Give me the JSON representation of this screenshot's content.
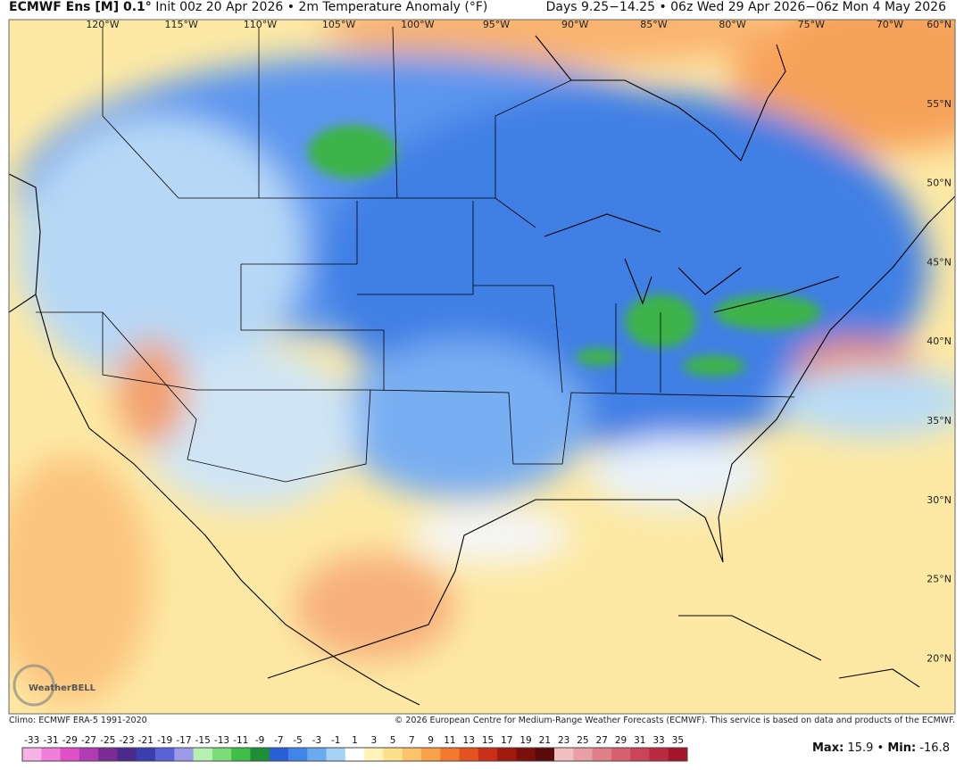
{
  "header": {
    "title": "ECMWF Ens [M] 0.1°",
    "init": "Init 00z 20 Apr 2026 • 2m Temperature Anomaly (°F)",
    "valid": "Days 9.25−14.25 • 06z Wed 29 Apr 2026−06z Mon 4 May 2026"
  },
  "map": {
    "lon_labels": [
      "120°W",
      "115°W",
      "110°W",
      "105°W",
      "100°W",
      "95°W",
      "90°W",
      "85°W",
      "80°W",
      "75°W",
      "70°W"
    ],
    "lat_labels": [
      "60°N",
      "55°N",
      "50°N",
      "45°N",
      "40°N",
      "35°N",
      "30°N",
      "25°N",
      "20°N"
    ],
    "logo": "WeatherBELL"
  },
  "footer": {
    "climo": "Climo: ECMWF ERA-5 1991-2020",
    "copyright": "© 2026 European Centre for Medium-Range Weather Forecasts (ECMWF). This service is based on data and products of the ECMWF."
  },
  "colorbar": {
    "ticks": [
      -33,
      -31,
      -29,
      -27,
      -25,
      -23,
      -21,
      -19,
      -17,
      -15,
      -13,
      -11,
      -9,
      -7,
      -5,
      -3,
      -1,
      1,
      3,
      5,
      7,
      9,
      11,
      13,
      15,
      17,
      19,
      21,
      23,
      25,
      27,
      29,
      31,
      33,
      35
    ],
    "colors": [
      "#f7b3e6",
      "#ef7fda",
      "#e04fc8",
      "#b13bb5",
      "#7a2b94",
      "#4a2a8c",
      "#3b3fae",
      "#5a63d6",
      "#9a9ae8",
      "#b6f0b0",
      "#7ddc7a",
      "#3fbf4a",
      "#1f8f35",
      "#2a5fd6",
      "#3f86e8",
      "#6aaaf0",
      "#a6d2f6",
      "#ffffff",
      "#fff3b8",
      "#fde08a",
      "#fcc46a",
      "#f9a24a",
      "#f3792f",
      "#e4521f",
      "#c92e16",
      "#a01a10",
      "#7a0f0c",
      "#5a0a0a",
      "#f0c0c0",
      "#e8a0a4",
      "#e08088",
      "#d66070",
      "#cc4458",
      "#bb2a40",
      "#a5162a"
    ]
  },
  "stats": {
    "max_label": "Max:",
    "max": 15.9,
    "separator": "•",
    "min_label": "Min:",
    "min": -16.8
  }
}
